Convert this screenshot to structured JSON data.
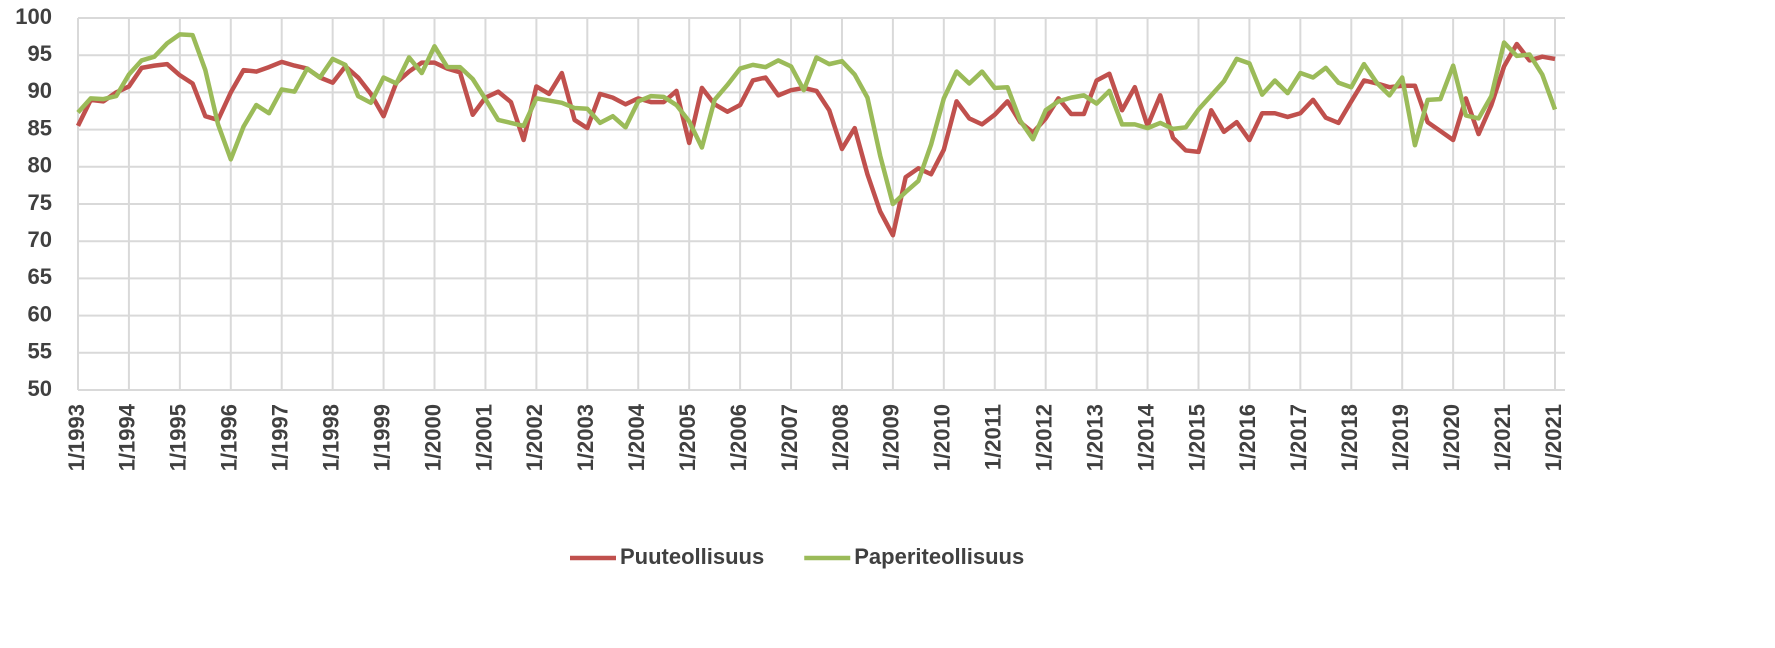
{
  "chart_data": {
    "type": "line",
    "categories": [
      "1/1993",
      null,
      null,
      null,
      "1/1994",
      null,
      null,
      null,
      "1/1995",
      null,
      null,
      null,
      "1/1996",
      null,
      null,
      null,
      "1/1997",
      null,
      null,
      null,
      "1/1998",
      null,
      null,
      null,
      "1/1999",
      null,
      null,
      null,
      "1/2000",
      null,
      null,
      null,
      "1/2001",
      null,
      null,
      null,
      "1/2002",
      null,
      null,
      null,
      "1/2003",
      null,
      null,
      null,
      "1/2004",
      null,
      null,
      null,
      "1/2005",
      null,
      null,
      null,
      "1/2006",
      null,
      null,
      null,
      "1/2007",
      null,
      null,
      null,
      "1/2008",
      null,
      null,
      null,
      "1/2009",
      null,
      null,
      null,
      "1/2010",
      null,
      null,
      null,
      "1/2011",
      null,
      null,
      null,
      "1/2012",
      null,
      null,
      null,
      "1/2013",
      null,
      null,
      null,
      "1/2014",
      null,
      null,
      null,
      "1/2015",
      null,
      null,
      null,
      "1/2016",
      null,
      null,
      null,
      "1/2017",
      null,
      null,
      null,
      "1/2018",
      null,
      null,
      null,
      "1/2019",
      null,
      null,
      null,
      "1/2020",
      null,
      null,
      null,
      "1/2021",
      null,
      null,
      null,
      "1/2021"
    ],
    "series": [
      {
        "name": "Puuteollisuus",
        "color": "#c0504d",
        "values": [
          85.5,
          89,
          88.8,
          90,
          90.8,
          93.3,
          93.6,
          93.8,
          92.3,
          91.2,
          86.8,
          86.3,
          90,
          93,
          92.8,
          93.4,
          94.1,
          93.6,
          93.2,
          92,
          91.3,
          93.5,
          92,
          89.8,
          86.8,
          91.3,
          92.8,
          94,
          94,
          93.2,
          92.7,
          87,
          89.3,
          90.1,
          88.7,
          83.6,
          90.8,
          89.8,
          92.6,
          86.3,
          85.2,
          89.8,
          89.3,
          88.4,
          89.2,
          88.7,
          88.7,
          90.2,
          83.2,
          90.6,
          88.4,
          87.4,
          88.3,
          91.6,
          92,
          89.6,
          90.3,
          90.6,
          90.2,
          87.6,
          82.4,
          85.2,
          79,
          74,
          70.8,
          78.6,
          79.8,
          79,
          82.3,
          88.8,
          86.5,
          85.7,
          87,
          88.8,
          86,
          84.6,
          86.5,
          89.2,
          87.1,
          87.1,
          91.6,
          92.5,
          87.6,
          90.7,
          85.5,
          89.6,
          83.9,
          82.2,
          82,
          87.6,
          84.7,
          86,
          83.6,
          87.2,
          87.2,
          86.7,
          87.2,
          89,
          86.6,
          85.9,
          88.8,
          91.6,
          91.2,
          90.7,
          90.9,
          90.9,
          86,
          84.8,
          83.6,
          89.2,
          84.4,
          88.3,
          93.5,
          96.5,
          94.3,
          94.8,
          94.5
        ]
      },
      {
        "name": "Paperiteollisuus",
        "color": "#9bbb59",
        "values": [
          87.3,
          89.2,
          89.1,
          89.5,
          92.4,
          94.3,
          94.8,
          96.6,
          97.8,
          97.7,
          93,
          85.7,
          81,
          85.4,
          88.3,
          87.2,
          90.4,
          90.1,
          93.2,
          92,
          94.5,
          93.7,
          89.5,
          88.6,
          92,
          91.2,
          94.7,
          92.6,
          96.2,
          93.4,
          93.4,
          91.8,
          89.1,
          86.3,
          85.9,
          85.5,
          89.2,
          88.9,
          88.6,
          87.9,
          87.8,
          85.9,
          86.8,
          85.3,
          88.8,
          89.5,
          89.4,
          88.3,
          86.1,
          82.6,
          89,
          91,
          93.2,
          93.7,
          93.4,
          94.3,
          93.5,
          90.3,
          94.7,
          93.8,
          94.2,
          92.4,
          89.3,
          81.5,
          75,
          76.6,
          78.1,
          83,
          89.2,
          92.8,
          91.2,
          92.8,
          90.6,
          90.7,
          86.2,
          83.7,
          87.6,
          88.8,
          89.3,
          89.6,
          88.5,
          90.2,
          85.7,
          85.7,
          85.2,
          85.9,
          85.1,
          85.3,
          87.7,
          89.6,
          91.5,
          94.5,
          93.9,
          89.7,
          91.6,
          89.9,
          92.6,
          92,
          93.3,
          91.3,
          90.7,
          93.8,
          91.3,
          89.6,
          92,
          82.9,
          89,
          89.1,
          93.6,
          86.9,
          86.5,
          89.5,
          96.7,
          94.9,
          95.1,
          92.4,
          87.7
        ]
      }
    ],
    "ylim": [
      50,
      100
    ],
    "yticks": [
      50,
      55,
      60,
      65,
      70,
      75,
      80,
      85,
      90,
      95,
      100
    ],
    "grid": true,
    "legend": "bottom"
  }
}
